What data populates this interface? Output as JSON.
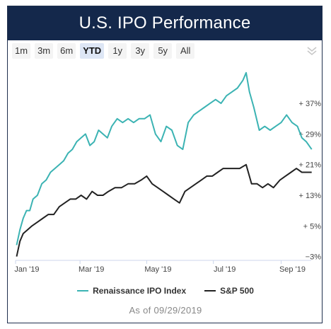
{
  "header": {
    "title": "U.S. IPO Performance"
  },
  "range_selector": {
    "options": [
      "1m",
      "3m",
      "6m",
      "YTD",
      "1y",
      "3y",
      "5y",
      "All"
    ],
    "selected": "YTD"
  },
  "menu_icon": "double-chevron-down-icon",
  "footer": {
    "as_of": "As of 09/29/2019"
  },
  "colors": {
    "header_bg": "#14284b",
    "ipo": "#3bb3b3",
    "sp500": "#222222"
  },
  "chart_data": {
    "type": "line",
    "x_tick_labels": [
      "Jan '19",
      "Mar '19",
      "May '19",
      "Jul '19",
      "Sep '19"
    ],
    "y_tick_labels": [
      "−3%",
      "+ 5%",
      "+ 13%",
      "+ 21%",
      "+ 29%",
      "+ 37%"
    ],
    "y_ticks": [
      -3,
      5,
      13,
      21,
      29,
      37
    ],
    "ylim": [
      -4,
      47
    ],
    "series": [
      {
        "name": "Renaissance IPO Index",
        "color": "#3bb3b3",
        "points": [
          [
            "2019-01-02",
            0
          ],
          [
            "2019-01-05",
            4
          ],
          [
            "2019-01-08",
            7
          ],
          [
            "2019-01-11",
            9
          ],
          [
            "2019-01-14",
            9
          ],
          [
            "2019-01-17",
            12
          ],
          [
            "2019-01-21",
            13
          ],
          [
            "2019-01-25",
            16
          ],
          [
            "2019-01-29",
            17
          ],
          [
            "2019-02-02",
            19
          ],
          [
            "2019-02-06",
            20
          ],
          [
            "2019-02-10",
            21
          ],
          [
            "2019-02-14",
            22
          ],
          [
            "2019-02-18",
            24
          ],
          [
            "2019-02-22",
            25
          ],
          [
            "2019-02-26",
            27
          ],
          [
            "2019-03-02",
            28
          ],
          [
            "2019-03-06",
            29
          ],
          [
            "2019-03-10",
            26
          ],
          [
            "2019-03-14",
            27
          ],
          [
            "2019-03-18",
            30
          ],
          [
            "2019-03-22",
            29
          ],
          [
            "2019-03-26",
            28
          ],
          [
            "2019-03-30",
            31
          ],
          [
            "2019-04-04",
            33
          ],
          [
            "2019-04-09",
            32
          ],
          [
            "2019-04-14",
            33
          ],
          [
            "2019-04-19",
            32
          ],
          [
            "2019-04-24",
            33
          ],
          [
            "2019-04-29",
            33
          ],
          [
            "2019-05-04",
            34
          ],
          [
            "2019-05-09",
            29
          ],
          [
            "2019-05-14",
            27
          ],
          [
            "2019-05-19",
            31
          ],
          [
            "2019-05-24",
            30
          ],
          [
            "2019-05-29",
            26
          ],
          [
            "2019-06-03",
            25
          ],
          [
            "2019-06-08",
            32
          ],
          [
            "2019-06-13",
            34
          ],
          [
            "2019-06-18",
            35
          ],
          [
            "2019-06-23",
            36
          ],
          [
            "2019-06-28",
            37
          ],
          [
            "2019-07-03",
            38
          ],
          [
            "2019-07-08",
            37
          ],
          [
            "2019-07-13",
            39
          ],
          [
            "2019-07-18",
            40
          ],
          [
            "2019-07-23",
            41
          ],
          [
            "2019-07-28",
            43
          ],
          [
            "2019-07-31",
            45
          ],
          [
            "2019-08-03",
            40
          ],
          [
            "2019-08-07",
            36
          ],
          [
            "2019-08-12",
            30
          ],
          [
            "2019-08-17",
            31
          ],
          [
            "2019-08-22",
            30
          ],
          [
            "2019-08-27",
            31
          ],
          [
            "2019-09-01",
            32
          ],
          [
            "2019-09-06",
            34
          ],
          [
            "2019-09-11",
            32
          ],
          [
            "2019-09-16",
            31
          ],
          [
            "2019-09-20",
            28
          ],
          [
            "2019-09-24",
            27
          ],
          [
            "2019-09-29",
            25
          ]
        ]
      },
      {
        "name": "S&P 500",
        "color": "#222222",
        "points": [
          [
            "2019-01-02",
            -3
          ],
          [
            "2019-01-05",
            1
          ],
          [
            "2019-01-08",
            3
          ],
          [
            "2019-01-12",
            4
          ],
          [
            "2019-01-16",
            5
          ],
          [
            "2019-01-21",
            6
          ],
          [
            "2019-01-26",
            7
          ],
          [
            "2019-01-31",
            8
          ],
          [
            "2019-02-05",
            8
          ],
          [
            "2019-02-10",
            10
          ],
          [
            "2019-02-15",
            11
          ],
          [
            "2019-02-20",
            12
          ],
          [
            "2019-02-25",
            12
          ],
          [
            "2019-03-02",
            13
          ],
          [
            "2019-03-07",
            12
          ],
          [
            "2019-03-12",
            14
          ],
          [
            "2019-03-17",
            13
          ],
          [
            "2019-03-22",
            13
          ],
          [
            "2019-03-27",
            14
          ],
          [
            "2019-04-02",
            15
          ],
          [
            "2019-04-08",
            15
          ],
          [
            "2019-04-14",
            16
          ],
          [
            "2019-04-20",
            16
          ],
          [
            "2019-04-26",
            17
          ],
          [
            "2019-05-01",
            18
          ],
          [
            "2019-05-06",
            16
          ],
          [
            "2019-05-11",
            15
          ],
          [
            "2019-05-16",
            14
          ],
          [
            "2019-05-21",
            13
          ],
          [
            "2019-05-26",
            12
          ],
          [
            "2019-05-31",
            11
          ],
          [
            "2019-06-05",
            14
          ],
          [
            "2019-06-10",
            15
          ],
          [
            "2019-06-15",
            16
          ],
          [
            "2019-06-20",
            17
          ],
          [
            "2019-06-25",
            18
          ],
          [
            "2019-06-30",
            18
          ],
          [
            "2019-07-05",
            19
          ],
          [
            "2019-07-10",
            20
          ],
          [
            "2019-07-15",
            20
          ],
          [
            "2019-07-20",
            20
          ],
          [
            "2019-07-25",
            20
          ],
          [
            "2019-07-31",
            21
          ],
          [
            "2019-08-05",
            16
          ],
          [
            "2019-08-10",
            16
          ],
          [
            "2019-08-15",
            15
          ],
          [
            "2019-08-20",
            16
          ],
          [
            "2019-08-25",
            15
          ],
          [
            "2019-08-31",
            17
          ],
          [
            "2019-09-05",
            18
          ],
          [
            "2019-09-10",
            19
          ],
          [
            "2019-09-15",
            20
          ],
          [
            "2019-09-20",
            19
          ],
          [
            "2019-09-25",
            19
          ],
          [
            "2019-09-29",
            19
          ]
        ]
      }
    ]
  }
}
